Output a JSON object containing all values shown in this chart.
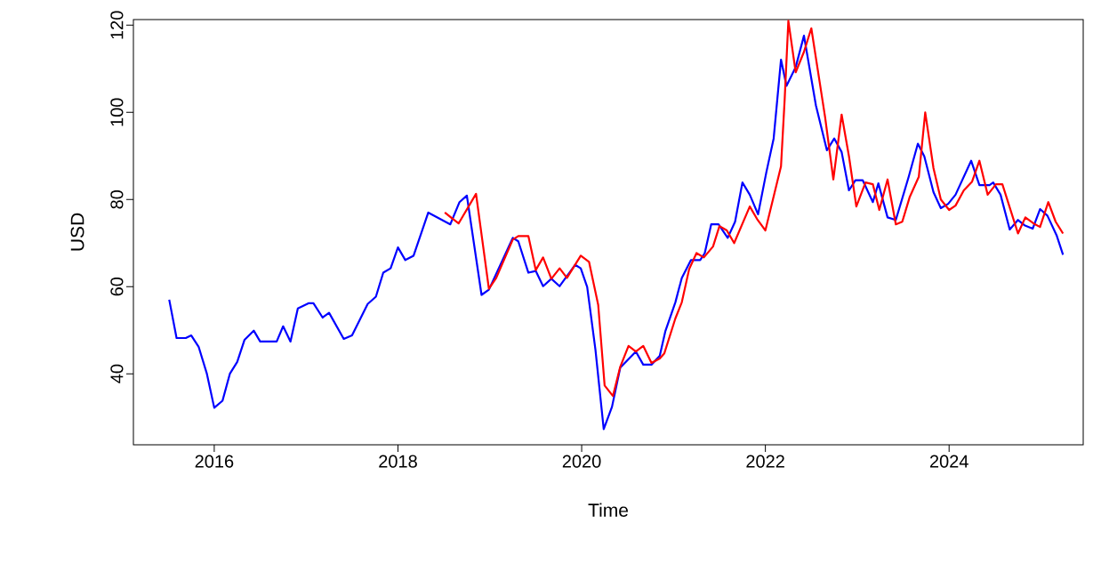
{
  "chart_data": {
    "type": "line",
    "xlabel": "Time",
    "ylabel": "USD",
    "xlim": [
      2015.12,
      2025.46
    ],
    "ylim": [
      23.7,
      121.3
    ],
    "xticks": [
      2016,
      2018,
      2020,
      2022,
      2024
    ],
    "yticks": [
      40,
      60,
      80,
      100,
      120
    ],
    "series": [
      {
        "color": "#0000ff",
        "x": [
          2015.51,
          2015.59,
          2015.69,
          2015.75,
          2015.83,
          2015.92,
          2016.0,
          2016.09,
          2016.17,
          2016.25,
          2016.33,
          2016.43,
          2016.5,
          2016.68,
          2016.75,
          2016.83,
          2016.91,
          2017.03,
          2017.08,
          2017.18,
          2017.25,
          2017.41,
          2017.5,
          2017.67,
          2017.76,
          2017.84,
          2017.92,
          2018.0,
          2018.08,
          2018.17,
          2018.33,
          2018.57,
          2018.67,
          2018.75,
          2018.91,
          2018.99,
          2019.25,
          2019.31,
          2019.42,
          2019.5,
          2019.58,
          2019.67,
          2019.76,
          2019.93,
          2019.99,
          2020.06,
          2020.15,
          2020.24,
          2020.33,
          2020.42,
          2020.59,
          2020.67,
          2020.76,
          2020.85,
          2020.91,
          2021.02,
          2021.09,
          2021.19,
          2021.29,
          2021.34,
          2021.41,
          2021.49,
          2021.59,
          2021.67,
          2021.75,
          2021.83,
          2021.92,
          2022.01,
          2022.09,
          2022.17,
          2022.23,
          2022.33,
          2022.42,
          2022.55,
          2022.67,
          2022.75,
          2022.83,
          2022.91,
          2022.98,
          2023.06,
          2023.17,
          2023.23,
          2023.33,
          2023.42,
          2023.56,
          2023.66,
          2023.73,
          2023.83,
          2023.91,
          2023.99,
          2024.07,
          2024.24,
          2024.33,
          2024.44,
          2024.48,
          2024.56,
          2024.66,
          2024.75,
          2024.82,
          2024.91,
          2024.99,
          2025.07,
          2025.17,
          2025.24
        ],
        "values": [
          57.0,
          48.2,
          48.2,
          48.8,
          46.2,
          40.0,
          32.2,
          33.8,
          40.0,
          42.7,
          47.8,
          49.9,
          47.4,
          47.4,
          50.9,
          47.4,
          55.0,
          56.2,
          56.2,
          52.9,
          54.0,
          48.0,
          48.8,
          56.0,
          57.7,
          63.2,
          64.2,
          69.0,
          66.1,
          67.1,
          77.0,
          74.3,
          79.4,
          80.9,
          58.1,
          59.3,
          71.2,
          70.4,
          63.2,
          63.6,
          60.1,
          61.8,
          60.1,
          65.0,
          64.2,
          59.9,
          45.5,
          27.3,
          32.4,
          41.4,
          45.1,
          42.1,
          42.1,
          44.1,
          49.7,
          56.4,
          62.0,
          66.1,
          66.1,
          67.7,
          74.3,
          74.3,
          71.2,
          74.9,
          83.9,
          81.1,
          76.6,
          86.2,
          94.0,
          112.1,
          106.1,
          110.4,
          117.6,
          101.6,
          91.3,
          94.0,
          90.9,
          82.1,
          84.4,
          84.4,
          79.4,
          83.7,
          75.9,
          75.3,
          85.2,
          92.8,
          89.9,
          81.7,
          78.0,
          79.0,
          81.1,
          88.9,
          83.3,
          83.3,
          83.9,
          81.1,
          73.1,
          75.3,
          74.1,
          73.3,
          77.8,
          76.3,
          71.8,
          67.3
        ]
      },
      {
        "color": "#ff0000",
        "x": [
          2018.51,
          2018.66,
          2018.85,
          2018.99,
          2019.07,
          2019.25,
          2019.31,
          2019.42,
          2019.5,
          2019.58,
          2019.67,
          2019.76,
          2019.84,
          2019.99,
          2020.08,
          2020.18,
          2020.25,
          2020.34,
          2020.42,
          2020.51,
          2020.59,
          2020.67,
          2020.76,
          2020.85,
          2020.9,
          2021.02,
          2021.09,
          2021.17,
          2021.25,
          2021.33,
          2021.43,
          2021.5,
          2021.58,
          2021.66,
          2021.83,
          2021.91,
          2022.0,
          2022.17,
          2022.21,
          2022.25,
          2022.33,
          2022.42,
          2022.5,
          2022.57,
          2022.65,
          2022.74,
          2022.83,
          2022.91,
          2022.99,
          2023.09,
          2023.17,
          2023.24,
          2023.33,
          2023.42,
          2023.49,
          2023.57,
          2023.67,
          2023.74,
          2023.83,
          2023.91,
          2024.0,
          2024.07,
          2024.16,
          2024.25,
          2024.33,
          2024.42,
          2024.51,
          2024.58,
          2024.75,
          2024.83,
          2024.92,
          2024.99,
          2025.08,
          2025.16,
          2025.24
        ],
        "values": [
          77.0,
          74.5,
          81.3,
          59.5,
          62.0,
          70.8,
          71.6,
          71.6,
          63.8,
          66.7,
          61.8,
          64.2,
          62.0,
          67.1,
          65.7,
          55.8,
          37.3,
          34.9,
          41.6,
          46.4,
          45.1,
          46.4,
          42.5,
          43.5,
          44.7,
          52.7,
          56.4,
          64.0,
          67.7,
          66.7,
          69.2,
          73.9,
          72.9,
          70.0,
          78.4,
          75.5,
          72.9,
          87.6,
          103.0,
          121.0,
          109.2,
          113.9,
          119.3,
          109.8,
          98.9,
          84.6,
          99.5,
          89.9,
          78.4,
          83.9,
          83.5,
          77.6,
          84.6,
          74.3,
          74.9,
          80.5,
          85.2,
          100.0,
          87.2,
          80.0,
          77.6,
          78.6,
          82.1,
          84.1,
          88.9,
          81.1,
          83.5,
          83.5,
          72.2,
          75.9,
          74.5,
          73.7,
          79.4,
          74.9,
          72.2
        ]
      }
    ]
  }
}
